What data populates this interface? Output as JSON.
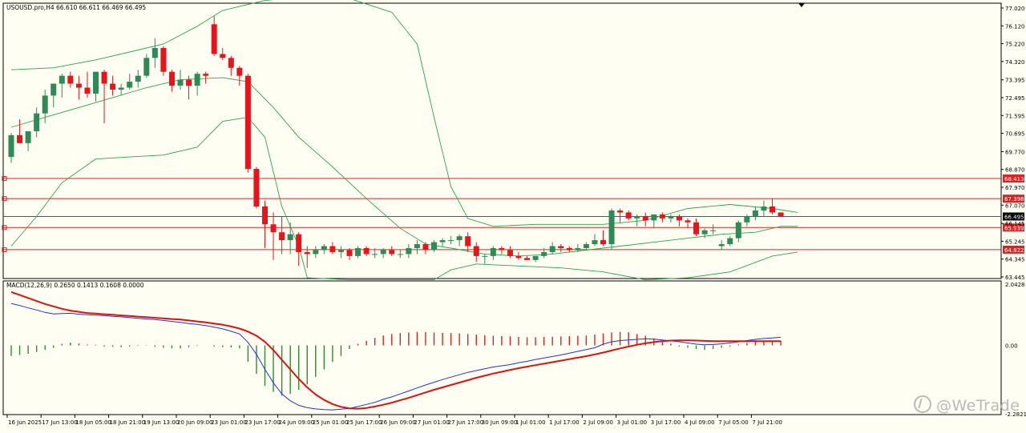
{
  "chart_data": {
    "type": "candlestick",
    "symbol_header": "USOUSD.pro,H4  66.610 66.611 66.469 66.495",
    "price_axis_ticks": [
      "77.020",
      "76.120",
      "75.220",
      "74.320",
      "73.395",
      "72.495",
      "71.595",
      "70.695",
      "69.770",
      "68.870",
      "67.970",
      "67.070",
      "66.145",
      "65.245",
      "64.345",
      "63.445"
    ],
    "price_axis_values": [
      77.02,
      76.12,
      75.22,
      74.32,
      73.395,
      72.495,
      71.595,
      70.695,
      69.77,
      68.87,
      67.97,
      67.07,
      66.145,
      65.245,
      64.345,
      63.445
    ],
    "price_ylim": [
      63.445,
      77.02
    ],
    "current_price": {
      "label": "66.495",
      "value": 66.495,
      "color": "#000000"
    },
    "levels": [
      {
        "label": "68.413",
        "value": 68.413,
        "color": "#e02020"
      },
      {
        "label": "67.398",
        "value": 67.398,
        "color": "#e02020"
      },
      {
        "label": "65.939",
        "value": 65.939,
        "color": "#e02020"
      },
      {
        "label": "64.822",
        "value": 64.822,
        "color": "#e02020"
      }
    ],
    "bull_color": "#2e8b57",
    "bear_color": "#e8141b",
    "candles": [
      [
        69.5,
        70.7,
        69.2,
        70.6
      ],
      [
        70.6,
        71.4,
        70.2,
        70.2
      ],
      [
        70.2,
        70.8,
        69.8,
        70.8
      ],
      [
        70.8,
        72.0,
        70.5,
        71.7
      ],
      [
        71.7,
        72.9,
        71.2,
        72.6
      ],
      [
        72.6,
        73.2,
        72.0,
        73.2
      ],
      [
        73.2,
        73.7,
        72.5,
        73.6
      ],
      [
        73.6,
        73.8,
        73.0,
        73.2
      ],
      [
        73.2,
        73.6,
        72.4,
        73.0
      ],
      [
        73.0,
        73.8,
        72.5,
        72.7
      ],
      [
        72.7,
        73.8,
        72.3,
        73.8
      ],
      [
        73.8,
        73.9,
        71.2,
        73.2
      ],
      [
        73.2,
        73.6,
        72.6,
        72.9
      ],
      [
        72.9,
        73.2,
        72.6,
        73.0
      ],
      [
        73.0,
        73.7,
        72.9,
        73.3
      ],
      [
        73.3,
        73.9,
        73.0,
        73.6
      ],
      [
        73.6,
        74.7,
        73.5,
        74.5
      ],
      [
        74.5,
        75.5,
        74.0,
        75.0
      ],
      [
        75.0,
        75.1,
        73.6,
        73.8
      ],
      [
        73.8,
        73.9,
        72.8,
        73.1
      ],
      [
        73.1,
        73.9,
        72.9,
        73.4
      ],
      [
        73.4,
        73.6,
        72.4,
        73.1
      ],
      [
        73.1,
        73.8,
        72.6,
        73.7
      ],
      [
        73.7,
        73.8,
        73.2,
        73.6
      ],
      [
        76.2,
        76.6,
        74.6,
        74.7
      ],
      [
        74.7,
        75.0,
        74.4,
        74.5
      ],
      [
        74.5,
        74.6,
        73.6,
        74.0
      ],
      [
        74.0,
        74.1,
        73.1,
        73.6
      ],
      [
        73.6,
        73.7,
        68.7,
        68.9
      ],
      [
        68.9,
        69.0,
        66.9,
        67.0
      ],
      [
        67.0,
        67.3,
        64.9,
        66.1
      ],
      [
        66.1,
        66.7,
        64.3,
        65.7
      ],
      [
        65.7,
        66.5,
        64.6,
        65.3
      ],
      [
        65.3,
        66.2,
        64.6,
        65.6
      ],
      [
        65.6,
        65.7,
        64.0,
        64.7
      ],
      [
        64.7,
        65.0,
        63.9,
        64.6
      ],
      [
        64.6,
        65.0,
        64.4,
        64.8
      ],
      [
        64.8,
        65.1,
        64.6,
        65.0
      ],
      [
        65.0,
        65.2,
        64.6,
        64.7
      ],
      [
        64.7,
        65.0,
        64.4,
        64.8
      ],
      [
        64.8,
        64.9,
        64.3,
        64.5
      ],
      [
        64.5,
        65.0,
        64.4,
        64.9
      ],
      [
        64.9,
        65.0,
        64.5,
        64.6
      ],
      [
        64.6,
        64.9,
        64.4,
        64.6
      ],
      [
        64.6,
        64.9,
        64.4,
        64.8
      ],
      [
        64.8,
        65.0,
        64.5,
        64.6
      ],
      [
        64.6,
        64.8,
        64.4,
        64.6
      ],
      [
        64.6,
        65.1,
        64.4,
        64.9
      ],
      [
        64.9,
        65.3,
        64.6,
        65.1
      ],
      [
        65.1,
        65.2,
        64.6,
        64.8
      ],
      [
        64.8,
        65.3,
        64.7,
        65.2
      ],
      [
        65.2,
        65.4,
        65.0,
        65.3
      ],
      [
        65.3,
        65.5,
        65.1,
        65.3
      ],
      [
        65.3,
        65.6,
        65.0,
        65.5
      ],
      [
        65.5,
        65.7,
        64.7,
        65.0
      ],
      [
        65.0,
        65.2,
        64.2,
        64.5
      ],
      [
        64.5,
        64.6,
        64.1,
        64.5
      ],
      [
        64.5,
        65.0,
        64.3,
        64.9
      ],
      [
        64.9,
        65.0,
        64.6,
        64.8
      ],
      [
        64.8,
        65.0,
        64.4,
        64.5
      ],
      [
        64.5,
        64.7,
        64.3,
        64.4
      ],
      [
        64.4,
        64.5,
        64.3,
        64.3
      ],
      [
        64.3,
        64.5,
        64.2,
        64.5
      ],
      [
        64.5,
        64.9,
        64.4,
        64.7
      ],
      [
        64.7,
        65.2,
        64.6,
        65.0
      ],
      [
        65.0,
        65.1,
        64.7,
        64.9
      ],
      [
        64.9,
        65.0,
        64.7,
        64.8
      ],
      [
        64.8,
        65.1,
        64.7,
        64.9
      ],
      [
        64.9,
        65.2,
        64.8,
        65.1
      ],
      [
        65.1,
        65.6,
        65.0,
        65.3
      ],
      [
        65.3,
        65.8,
        65.0,
        65.1
      ],
      [
        65.1,
        66.9,
        64.8,
        66.8
      ],
      [
        66.8,
        66.9,
        66.2,
        66.7
      ],
      [
        66.7,
        66.8,
        66.3,
        66.4
      ],
      [
        66.4,
        66.6,
        66.0,
        66.5
      ],
      [
        66.5,
        66.7,
        66.0,
        66.3
      ],
      [
        66.3,
        66.6,
        65.9,
        66.6
      ],
      [
        66.6,
        66.7,
        66.2,
        66.4
      ],
      [
        66.4,
        66.6,
        66.2,
        66.5
      ],
      [
        66.5,
        66.6,
        66.0,
        66.3
      ],
      [
        66.3,
        66.4,
        65.9,
        66.2
      ],
      [
        66.2,
        66.4,
        65.5,
        65.6
      ],
      [
        65.6,
        65.9,
        65.4,
        65.8
      ],
      [
        65.8,
        66.1,
        65.6,
        65.8
      ],
      [
        65.0,
        65.3,
        64.8,
        65.1
      ],
      [
        65.1,
        65.5,
        65.0,
        65.4
      ],
      [
        65.4,
        66.3,
        65.2,
        66.2
      ],
      [
        66.2,
        66.6,
        66.0,
        66.5
      ],
      [
        66.5,
        67.0,
        66.3,
        66.8
      ],
      [
        66.8,
        67.3,
        66.5,
        67.0
      ],
      [
        67.0,
        67.4,
        66.6,
        66.7
      ],
      [
        66.7,
        66.7,
        66.5,
        66.5
      ]
    ],
    "bollinger": {
      "color": "#2aa44a",
      "upper": [
        [
          0,
          73.9
        ],
        [
          5,
          74.0
        ],
        [
          10,
          74.4
        ],
        [
          15,
          74.9
        ],
        [
          18,
          75.2
        ],
        [
          22,
          76.1
        ],
        [
          25,
          76.9
        ],
        [
          30,
          77.4
        ],
        [
          35,
          77.6
        ],
        [
          40,
          77.5
        ],
        [
          45,
          76.8
        ],
        [
          48,
          75.2
        ],
        [
          50,
          71.5
        ],
        [
          52,
          68.0
        ],
        [
          54,
          66.4
        ],
        [
          57,
          66.0
        ],
        [
          62,
          66.1
        ],
        [
          70,
          66.1
        ],
        [
          75,
          66.3
        ],
        [
          80,
          66.9
        ],
        [
          85,
          67.1
        ],
        [
          90,
          66.9
        ],
        [
          93,
          66.7
        ]
      ],
      "middle": [
        [
          0,
          71.0
        ],
        [
          4,
          71.5
        ],
        [
          8,
          72.0
        ],
        [
          12,
          72.5
        ],
        [
          16,
          73.0
        ],
        [
          20,
          73.4
        ],
        [
          25,
          73.5
        ],
        [
          28,
          73.3
        ],
        [
          31,
          72.0
        ],
        [
          34,
          70.5
        ],
        [
          38,
          69.0
        ],
        [
          42,
          67.4
        ],
        [
          46,
          65.9
        ],
        [
          49,
          65.1
        ],
        [
          52,
          64.9
        ],
        [
          56,
          64.6
        ],
        [
          60,
          64.5
        ],
        [
          64,
          64.6
        ],
        [
          68,
          64.8
        ],
        [
          72,
          65.0
        ],
        [
          76,
          65.2
        ],
        [
          80,
          65.4
        ],
        [
          84,
          65.6
        ],
        [
          88,
          65.7
        ],
        [
          91,
          66.0
        ],
        [
          93,
          66.0
        ]
      ],
      "lower": [
        [
          0,
          65.0
        ],
        [
          3,
          66.5
        ],
        [
          6,
          68.2
        ],
        [
          10,
          69.4
        ],
        [
          14,
          69.5
        ],
        [
          18,
          69.6
        ],
        [
          22,
          70.0
        ],
        [
          25,
          71.3
        ],
        [
          28,
          71.5
        ],
        [
          30,
          70.5
        ],
        [
          32,
          67.0
        ],
        [
          34,
          65.0
        ],
        [
          35,
          63.4
        ],
        [
          40,
          63.3
        ],
        [
          45,
          63.3
        ],
        [
          50,
          63.3
        ],
        [
          52,
          63.8
        ],
        [
          55,
          64.1
        ],
        [
          60,
          64.0
        ],
        [
          65,
          63.9
        ],
        [
          70,
          63.7
        ],
        [
          75,
          63.3
        ],
        [
          80,
          63.4
        ],
        [
          85,
          63.7
        ],
        [
          90,
          64.5
        ],
        [
          93,
          64.7
        ]
      ]
    },
    "x_axis_labels": [
      "16 Jun 2025",
      "17 Jun 13:00",
      "18 Jun 05:00",
      "18 Jun 21:00",
      "19 Jun 13:00",
      "20 Jun 09:00",
      "23 Jun 01:00",
      "23 Jun 17:00",
      "24 Jun 09:00",
      "25 Jun 01:00",
      "25 Jun 17:00",
      "26 Jun 09:00",
      "27 Jun 01:00",
      "27 Jun 17:00",
      "30 Jun 09:00",
      "1 Jul 01:00",
      "1 Jul 17:00",
      "2 Jul 09:00",
      "3 Jul 01:00",
      "3 Jul 17:00",
      "4 Jul 09:00",
      "7 Jul 05:00",
      "7 Jul 21:00"
    ],
    "x_axis_label_index": [
      0,
      4,
      8,
      12,
      16,
      20,
      24,
      28,
      32,
      36,
      40,
      44,
      48,
      52,
      56,
      60,
      64,
      68,
      72,
      76,
      80,
      84,
      88
    ],
    "macd": {
      "header": "MACD(12,26,9) 0.2650 0.1413 0.1608 0.0000",
      "axis_ticks": [
        "2.0428",
        "0.00",
        "-2.2821"
      ],
      "axis_values": [
        2.0428,
        0.0,
        -2.2821
      ],
      "ylim": [
        -2.2821,
        2.0428
      ],
      "hist_pos_color": "#e02020",
      "hist_neg_color": "#2e8b2e",
      "main_color": "#2030e0",
      "signal_color": "#e01010",
      "histogram": [
        -0.35,
        -0.32,
        -0.28,
        -0.22,
        -0.15,
        -0.08,
        0.05,
        0.09,
        0.06,
        0.03,
        0.02,
        -0.04,
        -0.05,
        -0.06,
        -0.04,
        -0.02,
        -0.01,
        -0.05,
        -0.08,
        -0.1,
        -0.1,
        -0.06,
        -0.02,
        0.0,
        -0.04,
        -0.06,
        -0.07,
        -0.1,
        -0.55,
        -0.95,
        -1.35,
        -1.55,
        -1.68,
        -1.62,
        -1.48,
        -1.3,
        -1.05,
        -0.8,
        -0.55,
        -0.35,
        -0.12,
        0.05,
        0.15,
        0.25,
        0.33,
        0.38,
        0.41,
        0.43,
        0.45,
        0.44,
        0.43,
        0.42,
        0.41,
        0.4,
        0.38,
        0.36,
        0.34,
        0.32,
        0.31,
        0.3,
        0.28,
        0.27,
        0.27,
        0.28,
        0.29,
        0.3,
        0.31,
        0.32,
        0.33,
        0.36,
        0.4,
        0.43,
        0.45,
        0.44,
        0.38,
        0.32,
        0.24,
        0.15,
        0.06,
        -0.04,
        -0.08,
        -0.12,
        -0.15,
        -0.12,
        -0.08,
        -0.04,
        0.03,
        0.08,
        0.12,
        0.13,
        0.13,
        0.14
      ],
      "main_line": [
        1.4,
        1.33,
        1.25,
        1.18,
        1.1,
        1.05,
        1.06,
        1.07,
        1.04,
        1.02,
        1.01,
        0.99,
        0.97,
        0.95,
        0.93,
        0.9,
        0.88,
        0.86,
        0.83,
        0.8,
        0.77,
        0.73,
        0.7,
        0.66,
        0.61,
        0.55,
        0.47,
        0.38,
        0.1,
        -0.3,
        -0.8,
        -1.25,
        -1.62,
        -1.85,
        -2.0,
        -2.08,
        -2.12,
        -2.14,
        -2.15,
        -2.13,
        -2.1,
        -2.04,
        -1.97,
        -1.9,
        -1.8,
        -1.72,
        -1.62,
        -1.52,
        -1.42,
        -1.32,
        -1.23,
        -1.14,
        -1.06,
        -0.98,
        -0.9,
        -0.84,
        -0.78,
        -0.72,
        -0.68,
        -0.64,
        -0.58,
        -0.53,
        -0.47,
        -0.42,
        -0.37,
        -0.32,
        -0.26,
        -0.2,
        -0.14,
        -0.08,
        0.04,
        0.12,
        0.16,
        0.18,
        0.2,
        0.22,
        0.21,
        0.18,
        0.15,
        0.12,
        0.08,
        0.04,
        0.02,
        0.03,
        0.05,
        0.08,
        0.12,
        0.16,
        0.2,
        0.23,
        0.25,
        0.27
      ],
      "signal_line": [
        1.78,
        1.68,
        1.58,
        1.48,
        1.38,
        1.3,
        1.22,
        1.16,
        1.12,
        1.08,
        1.06,
        1.04,
        1.02,
        1.0,
        0.98,
        0.96,
        0.94,
        0.92,
        0.9,
        0.88,
        0.86,
        0.83,
        0.8,
        0.77,
        0.73,
        0.69,
        0.63,
        0.56,
        0.46,
        0.32,
        0.12,
        -0.16,
        -0.48,
        -0.8,
        -1.12,
        -1.4,
        -1.64,
        -1.82,
        -1.96,
        -2.05,
        -2.1,
        -2.11,
        -2.09,
        -2.04,
        -1.98,
        -1.91,
        -1.83,
        -1.75,
        -1.66,
        -1.57,
        -1.48,
        -1.4,
        -1.32,
        -1.24,
        -1.16,
        -1.08,
        -1.01,
        -0.94,
        -0.88,
        -0.82,
        -0.76,
        -0.71,
        -0.66,
        -0.61,
        -0.56,
        -0.51,
        -0.46,
        -0.41,
        -0.36,
        -0.3,
        -0.24,
        -0.17,
        -0.1,
        -0.04,
        0.02,
        0.07,
        0.11,
        0.14,
        0.16,
        0.17,
        0.17,
        0.16,
        0.15,
        0.14,
        0.14,
        0.14,
        0.14,
        0.14,
        0.14,
        0.14,
        0.14,
        0.14
      ]
    }
  },
  "watermark": "@WeTrade"
}
